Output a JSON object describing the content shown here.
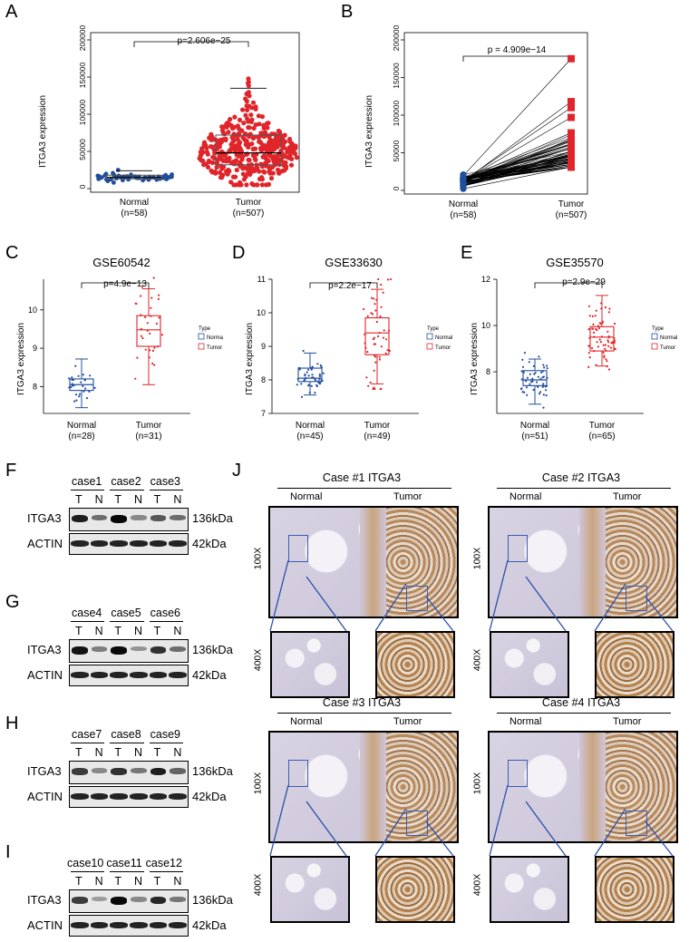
{
  "panels": {
    "A": "A",
    "B": "B",
    "C": "C",
    "D": "D",
    "E": "E",
    "F": "F",
    "G": "G",
    "H": "H",
    "I": "I",
    "J": "J"
  },
  "chart_data": [
    {
      "id": "A",
      "type": "scatter",
      "title": "",
      "ylabel": "ITGA3 expression",
      "yticks": [
        "0",
        "50000",
        "100000",
        "150000",
        "200000"
      ],
      "ylim": [
        0,
        200000
      ],
      "categories": [
        "Normal\n(n=58)",
        "Tumor\n(n=507)"
      ],
      "cat_line1": [
        "Normal",
        "Tumor"
      ],
      "cat_line2": [
        "(n=58)",
        "(n=507)"
      ],
      "pvalue": "p=2.606e−25",
      "series": [
        {
          "values_summary": {
            "median": 15000,
            "q1": 13000,
            "q3": 18000,
            "min": 5000,
            "max": 25000
          }
        },
        {
          "values_summary": {
            "median": 48000,
            "q1": 32000,
            "q3": 72000,
            "min": 5000,
            "max": 175000
          }
        }
      ],
      "colors": [
        "#1f4e9c",
        "#e0252a"
      ]
    },
    {
      "id": "B",
      "type": "line",
      "title": "",
      "ylabel": "ITGA3 expression",
      "yticks": [
        "0",
        "50000",
        "100000",
        "150000",
        "200000"
      ],
      "ylim": [
        0,
        200000
      ],
      "cat_line1": [
        "Normal",
        "Tumor"
      ],
      "cat_line2": [
        "(n=58)",
        "(n=507)"
      ],
      "pvalue": "p = 4.909e−14",
      "colors": [
        "#1f4e9c",
        "#e0252a"
      ]
    },
    {
      "id": "C",
      "type": "box",
      "title": "GSE60542",
      "ylabel": "ITGA3 expression",
      "yticks": [
        "8",
        "9",
        "10"
      ],
      "ylim": [
        7.3,
        10.8
      ],
      "cat_line1": [
        "Normal",
        "Tumor"
      ],
      "cat_line2": [
        "(n=28)",
        "(n=31)"
      ],
      "pvalue": "p=4.9e−13",
      "legend_title": "Type",
      "legend": [
        "Norma",
        "Tumor"
      ],
      "boxes": [
        {
          "min": 7.45,
          "q1": 7.9,
          "median": 8.05,
          "q3": 8.2,
          "max": 8.72
        },
        {
          "min": 8.05,
          "q1": 9.05,
          "median": 9.48,
          "q3": 9.85,
          "max": 10.55
        }
      ],
      "colors": [
        "#1f4e9c",
        "#e0252a"
      ]
    },
    {
      "id": "D",
      "type": "box",
      "title": "GSE33630",
      "ylabel": "ITGA3 expression",
      "yticks": [
        "7",
        "8",
        "9",
        "10",
        "11"
      ],
      "ylim": [
        7,
        11
      ],
      "cat_line1": [
        "Normal",
        "Tumor"
      ],
      "cat_line2": [
        "(n=45)",
        "(n=49)"
      ],
      "pvalue": "p=2.2e−17",
      "legend_title": "Type",
      "legend": [
        "Normal",
        "Tumor"
      ],
      "boxes": [
        {
          "min": 7.55,
          "q1": 7.95,
          "median": 8.05,
          "q3": 8.35,
          "max": 8.8
        },
        {
          "min": 7.88,
          "q1": 8.75,
          "median": 9.4,
          "q3": 9.85,
          "max": 10.7
        }
      ],
      "colors": [
        "#1f4e9c",
        "#e0252a"
      ]
    },
    {
      "id": "E",
      "type": "box",
      "title": "GSE35570",
      "ylabel": "ITGA3 expression",
      "yticks": [
        "8",
        "10",
        "12"
      ],
      "ylim": [
        6.2,
        12
      ],
      "cat_line1": [
        "Normal",
        "Tumor"
      ],
      "cat_line2": [
        "(n=51)",
        "(n=65)"
      ],
      "pvalue": "p=2.9e−29",
      "legend_title": "Type",
      "legend": [
        "Normal",
        "Tumor"
      ],
      "boxes": [
        {
          "min": 6.6,
          "q1": 7.4,
          "median": 7.65,
          "q3": 8.05,
          "max": 8.55
        },
        {
          "min": 8.25,
          "q1": 8.9,
          "median": 9.5,
          "q3": 9.95,
          "max": 11.3
        }
      ],
      "colors": [
        "#1f4e9c",
        "#e0252a"
      ]
    }
  ],
  "western": {
    "row1": "ITGA3",
    "row2": "ACTIN",
    "kda1": "136kDa",
    "kda2": "42kDa",
    "T": "T",
    "N": "N",
    "groups": [
      {
        "cases": [
          "case1",
          "case2",
          "case3"
        ]
      },
      {
        "cases": [
          "case4",
          "case5",
          "case6"
        ]
      },
      {
        "cases": [
          "case7",
          "case8",
          "case9"
        ]
      },
      {
        "cases": [
          "case10",
          "case11",
          "case12"
        ]
      }
    ]
  },
  "ihc": {
    "normal": "Normal",
    "tumor": "Tumor",
    "mag100": "100X",
    "mag400": "400X",
    "cases": [
      "Case #1  ITGA3",
      "Case #2  ITGA3",
      "Case #3  ITGA3",
      "Case #4  ITGA3"
    ]
  }
}
